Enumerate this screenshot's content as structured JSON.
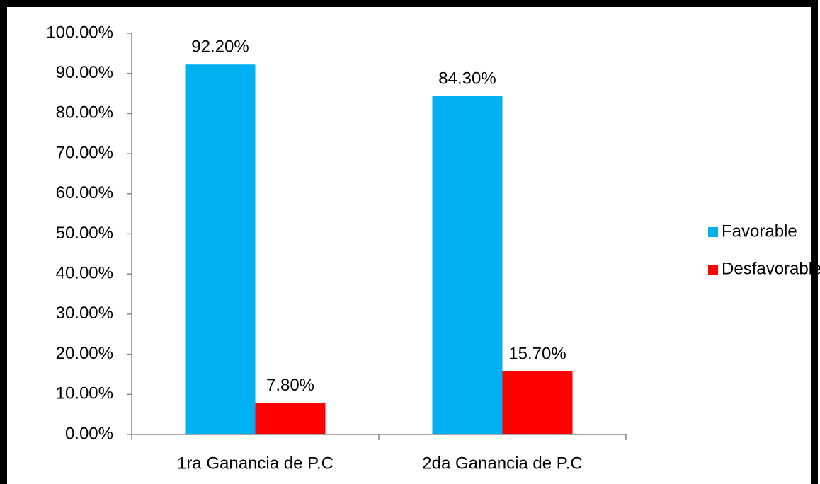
{
  "chart_data": {
    "type": "bar",
    "categories": [
      "1ra Ganancia de P.C",
      "2da Ganancia de P.C"
    ],
    "series": [
      {
        "name": "Favorable",
        "color": "#00b0f0",
        "values": [
          92.2,
          84.3
        ],
        "value_labels": [
          "92.20%",
          "84.30%"
        ]
      },
      {
        "name": "Desfavorable",
        "color": "#ff0000",
        "values": [
          7.8,
          15.7
        ],
        "value_labels": [
          "7.80%",
          "15.70%"
        ]
      }
    ],
    "ylim": [
      0,
      100
    ],
    "yticks": [
      {
        "value": 0,
        "label": "0.00%"
      },
      {
        "value": 10,
        "label": "10.00%"
      },
      {
        "value": 20,
        "label": "20.00%"
      },
      {
        "value": 30,
        "label": "30.00%"
      },
      {
        "value": 40,
        "label": "40.00%"
      },
      {
        "value": 50,
        "label": "50.00%"
      },
      {
        "value": 60,
        "label": "60.00%"
      },
      {
        "value": 70,
        "label": "70.00%"
      },
      {
        "value": 80,
        "label": "80.00%"
      },
      {
        "value": 90,
        "label": "90.00%"
      },
      {
        "value": 100,
        "label": "100.00%"
      }
    ],
    "grid": false,
    "legend": "right"
  }
}
